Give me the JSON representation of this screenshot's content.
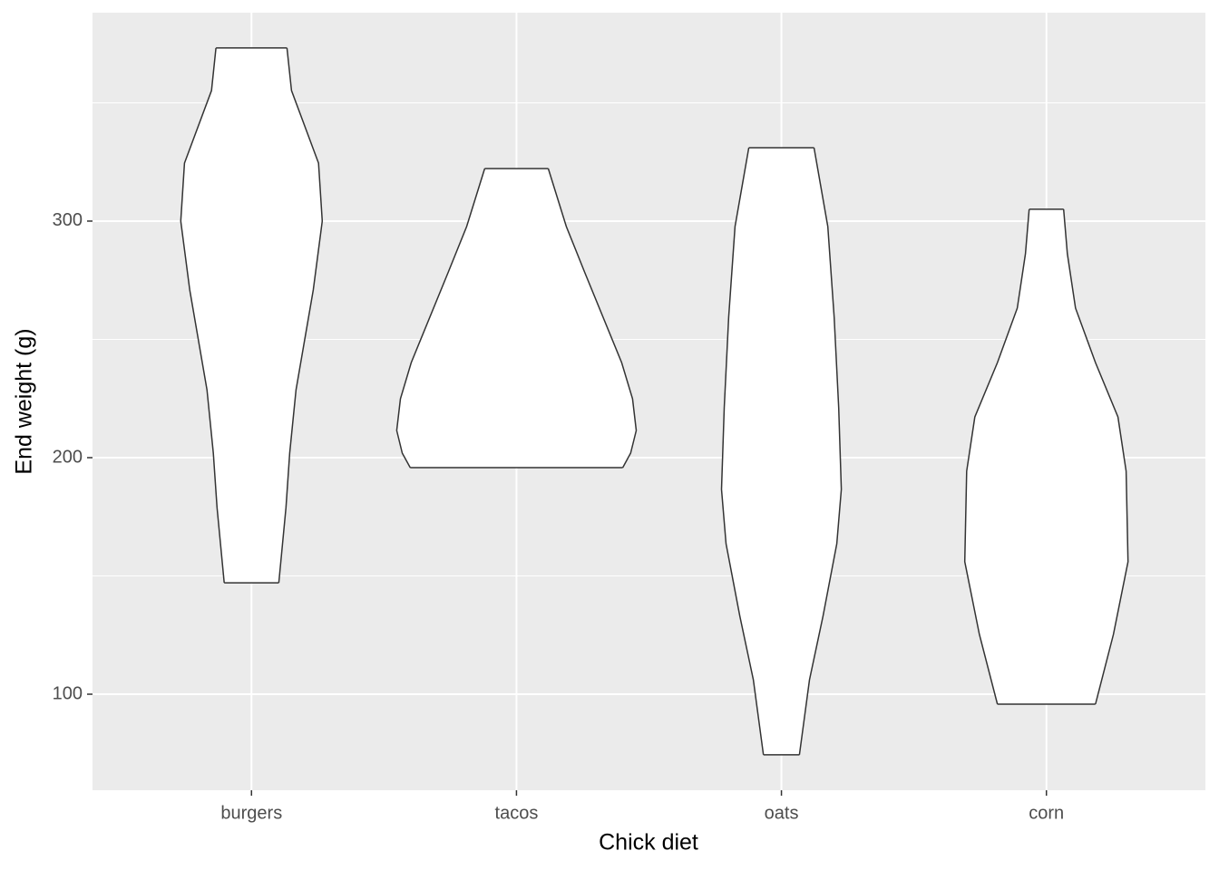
{
  "chart_data": {
    "type": "violin",
    "x_label": "Chick diet",
    "y_label": "End weight (g)",
    "categories": [
      "burgers",
      "tacos",
      "oats",
      "corn"
    ],
    "violins": [
      {
        "y": [
          373.2,
          355.2,
          324.5,
          300,
          270.9,
          228.7,
          201.9,
          178.9,
          147.1
        ],
        "half_widths": [
          0.134,
          0.151,
          0.253,
          0.267,
          0.233,
          0.168,
          0.144,
          0.13,
          0.103
        ]
      },
      {
        "y": [
          322.2,
          297.7,
          278.5,
          240.2,
          224.9,
          211.5,
          201.9,
          195.8
        ],
        "half_widths": [
          0.12,
          0.188,
          0.257,
          0.397,
          0.438,
          0.452,
          0.431,
          0.401
        ]
      },
      {
        "y": [
          331.0,
          297.7,
          259.4,
          221.1,
          186.6,
          163.6,
          133.0,
          106.1,
          74.4
        ],
        "half_widths": [
          0.123,
          0.175,
          0.199,
          0.216,
          0.226,
          0.209,
          0.157,
          0.106,
          0.068
        ]
      },
      {
        "y": [
          305.0,
          286.2,
          263.2,
          240.2,
          217.2,
          194.3,
          156.0,
          125.3,
          95.8
        ],
        "half_widths": [
          0.065,
          0.079,
          0.11,
          0.185,
          0.27,
          0.301,
          0.308,
          0.253,
          0.185
        ]
      }
    ],
    "fill": "#ffffff",
    "stroke": "#333333",
    "panel_background": "#ebebeb",
    "ylim": [
      59.4,
      388.1
    ],
    "yticks": [
      100,
      200,
      300
    ],
    "y_minor_gridlines": [
      150,
      250,
      350
    ],
    "grid": true
  }
}
